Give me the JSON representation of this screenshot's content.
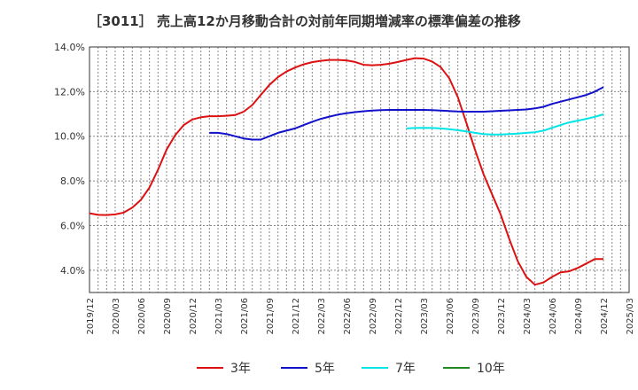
{
  "title": "［3011］ 売上高12か月移動合計の対前年同期増減率の標準偏差の推移",
  "chart_data": {
    "type": "line",
    "title": "［3011］ 売上高12か月移動合計の対前年同期増減率の標準偏差の推移",
    "xlabel": "",
    "ylabel": "",
    "ylim": [
      3.0,
      14.0
    ],
    "yticks": [
      4.0,
      6.0,
      8.0,
      10.0,
      12.0,
      14.0
    ],
    "ytick_labels": [
      "4.0%",
      "6.0%",
      "8.0%",
      "10.0%",
      "12.0%",
      "14.0%"
    ],
    "xlim": [
      "2019-12",
      "2025-03"
    ],
    "xtick_labels": [
      "2019/12",
      "2020/03",
      "2020/06",
      "2020/09",
      "2020/12",
      "2021/03",
      "2021/06",
      "2021/09",
      "2021/12",
      "2022/03",
      "2022/06",
      "2022/09",
      "2022/12",
      "2023/03",
      "2023/06",
      "2023/09",
      "2023/12",
      "2024/03",
      "2024/06",
      "2024/09",
      "2024/12",
      "2025/03"
    ],
    "grid": true,
    "legend_position": "bottom",
    "series": [
      {
        "name": "3年",
        "color": "#dd1111",
        "x": [
          "2019-12",
          "2020-01",
          "2020-02",
          "2020-03",
          "2020-04",
          "2020-05",
          "2020-06",
          "2020-07",
          "2020-08",
          "2020-09",
          "2020-10",
          "2020-11",
          "2020-12",
          "2021-01",
          "2021-02",
          "2021-03",
          "2021-04",
          "2021-05",
          "2021-06",
          "2021-07",
          "2021-08",
          "2021-09",
          "2021-10",
          "2021-11",
          "2021-12",
          "2022-01",
          "2022-02",
          "2022-03",
          "2022-04",
          "2022-05",
          "2022-06",
          "2022-07",
          "2022-08",
          "2022-09",
          "2022-10",
          "2022-11",
          "2022-12",
          "2023-01",
          "2023-02",
          "2023-03",
          "2023-04",
          "2023-05",
          "2023-06",
          "2023-07",
          "2023-08",
          "2023-09",
          "2023-10",
          "2023-11",
          "2023-12",
          "2024-01",
          "2024-02",
          "2024-03",
          "2024-04",
          "2024-05",
          "2024-06",
          "2024-07",
          "2024-08",
          "2024-09",
          "2024-10",
          "2024-11",
          "2024-12"
        ],
        "values": [
          6.55,
          6.48,
          6.47,
          6.5,
          6.58,
          6.8,
          7.15,
          7.7,
          8.5,
          9.4,
          10.05,
          10.5,
          10.75,
          10.85,
          10.9,
          10.9,
          10.92,
          10.95,
          11.1,
          11.4,
          11.85,
          12.3,
          12.65,
          12.9,
          13.08,
          13.22,
          13.32,
          13.38,
          13.42,
          13.42,
          13.4,
          13.33,
          13.2,
          13.18,
          13.2,
          13.25,
          13.33,
          13.42,
          13.5,
          13.48,
          13.35,
          13.1,
          12.6,
          11.75,
          10.6,
          9.4,
          8.3,
          7.4,
          6.5,
          5.4,
          4.4,
          3.7,
          3.35,
          3.45,
          3.7,
          3.9,
          3.95,
          4.1,
          4.3,
          4.5,
          4.5
        ]
      },
      {
        "name": "5年",
        "color": "#1111cc",
        "x": [
          "2021-02",
          "2021-03",
          "2021-04",
          "2021-05",
          "2021-06",
          "2021-07",
          "2021-08",
          "2021-09",
          "2021-10",
          "2021-11",
          "2021-12",
          "2022-01",
          "2022-02",
          "2022-03",
          "2022-04",
          "2022-05",
          "2022-06",
          "2022-07",
          "2022-08",
          "2022-09",
          "2022-10",
          "2022-11",
          "2022-12",
          "2023-01",
          "2023-02",
          "2023-03",
          "2023-04",
          "2023-05",
          "2023-06",
          "2023-07",
          "2023-08",
          "2023-09",
          "2023-10",
          "2023-11",
          "2023-12",
          "2024-01",
          "2024-02",
          "2024-03",
          "2024-04",
          "2024-05",
          "2024-06",
          "2024-07",
          "2024-08",
          "2024-09",
          "2024-10",
          "2024-11",
          "2024-12"
        ],
        "values": [
          10.15,
          10.15,
          10.1,
          10.0,
          9.9,
          9.85,
          9.85,
          10.0,
          10.15,
          10.25,
          10.35,
          10.5,
          10.65,
          10.78,
          10.88,
          10.97,
          11.03,
          11.08,
          11.12,
          11.15,
          11.17,
          11.18,
          11.18,
          11.18,
          11.18,
          11.18,
          11.17,
          11.15,
          11.13,
          11.11,
          11.1,
          11.1,
          11.1,
          11.12,
          11.14,
          11.16,
          11.18,
          11.2,
          11.25,
          11.32,
          11.45,
          11.55,
          11.65,
          11.75,
          11.85,
          12.0,
          12.2
        ]
      },
      {
        "name": "7年",
        "color": "#00e5e5",
        "x": [
          "2023-01",
          "2023-02",
          "2023-03",
          "2023-04",
          "2023-05",
          "2023-06",
          "2023-07",
          "2023-08",
          "2023-09",
          "2023-10",
          "2023-11",
          "2023-12",
          "2024-01",
          "2024-02",
          "2024-03",
          "2024-04",
          "2024-05",
          "2024-06",
          "2024-07",
          "2024-08",
          "2024-09",
          "2024-10",
          "2024-11",
          "2024-12"
        ],
        "values": [
          10.35,
          10.37,
          10.38,
          10.37,
          10.35,
          10.32,
          10.27,
          10.22,
          10.15,
          10.1,
          10.08,
          10.08,
          10.1,
          10.12,
          10.15,
          10.18,
          10.25,
          10.38,
          10.5,
          10.62,
          10.7,
          10.78,
          10.87,
          10.98
        ]
      },
      {
        "name": "10年",
        "color": "#228822",
        "x": [],
        "values": []
      }
    ]
  }
}
